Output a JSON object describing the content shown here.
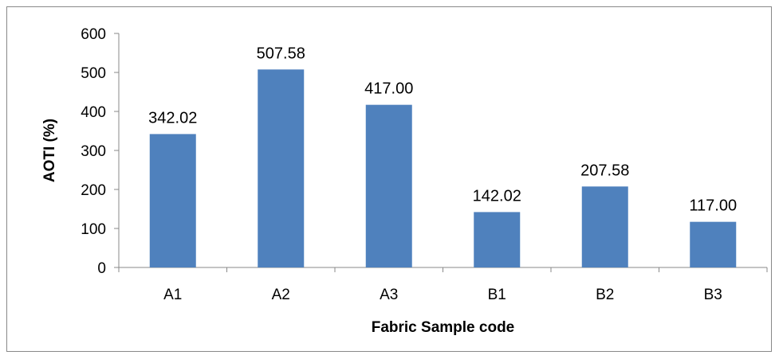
{
  "chart_data": {
    "type": "bar",
    "categories": [
      "A1",
      "A2",
      "A3",
      "B1",
      "B2",
      "B3"
    ],
    "values": [
      342.02,
      507.58,
      417.0,
      142.02,
      207.58,
      117.0
    ],
    "data_labels": [
      "342.02",
      "507.58",
      "417.00",
      "142.02",
      "207.58",
      "117.00"
    ],
    "xlabel": "Fabric Sample code",
    "ylabel": "AOTI (%)",
    "ylim": [
      0,
      600
    ],
    "yticks": [
      0,
      100,
      200,
      300,
      400,
      500,
      600
    ],
    "grid": false,
    "legend": "none",
    "bar_color": "#4F81BD",
    "axis_color": "#898989"
  }
}
